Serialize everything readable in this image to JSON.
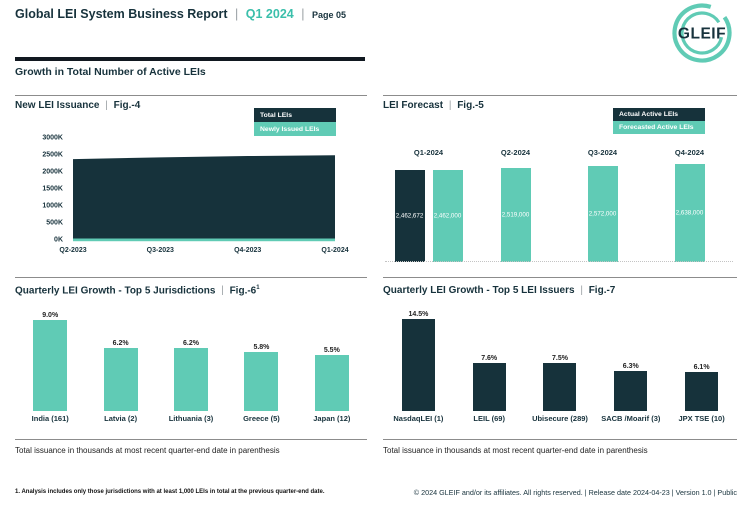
{
  "header": {
    "title": "Global LEI System Business Report",
    "period": "Q1 2024",
    "page": "Page 05"
  },
  "pipe": "|",
  "logo": {
    "text": "GLEIF"
  },
  "section_heading": "Growth in Total Number of Active LEIs",
  "colors": {
    "dark": "#16323B",
    "teal": "#60CBB5",
    "accent_teal_text": "#3BBFAB",
    "text_dark": "#17323C",
    "rule_gray": "#8C8C8C",
    "dotted_gray": "#C4C4C4"
  },
  "panels": {
    "fig4": {
      "title": "New LEI Issuance",
      "fig": "Fig.-4",
      "legend": [
        "Total LEIs",
        "Newly Issued LEIs"
      ]
    },
    "fig5": {
      "title": "LEI Forecast",
      "fig": "Fig.-5",
      "legend": [
        "Actual Active LEIs",
        "Forecasted Active LEIs"
      ]
    },
    "fig6": {
      "title": "Quarterly LEI Growth - Top 5 Jurisdictions",
      "fig": "Fig.-6",
      "sup": "1",
      "note": "Total issuance in thousands at most recent quarter-end date in parenthesis"
    },
    "fig7": {
      "title": "Quarterly LEI Growth - Top 5 LEI Issuers",
      "fig": "Fig.-7",
      "note": "Total issuance in thousands at most recent quarter-end date in parenthesis"
    }
  },
  "chart_data": [
    {
      "id": "fig4",
      "type": "area",
      "title": "New LEI Issuance | Fig.-4",
      "x": [
        "Q2-2023",
        "Q3-2023",
        "Q4-2023",
        "Q1-2024"
      ],
      "series": [
        {
          "name": "Total LEIs",
          "color_key": "dark",
          "values": [
            2350000,
            2400000,
            2440000,
            2462672
          ]
        },
        {
          "name": "Newly Issued LEIs",
          "color_key": "teal",
          "values": [
            80000,
            80000,
            80000,
            80000
          ]
        }
      ],
      "ylim": [
        0,
        3000000
      ],
      "yticks": [
        "0K",
        "500K",
        "1000K",
        "1500K",
        "2000K",
        "2500K",
        "3000K"
      ],
      "legend_position": "top-right",
      "grid": false
    },
    {
      "id": "fig5",
      "type": "bar",
      "title": "LEI Forecast | Fig.-5",
      "categories": [
        "Q1-2024",
        "Q2-2024",
        "Q3-2024",
        "Q4-2024"
      ],
      "series": [
        {
          "name": "Actual Active LEIs",
          "color_key": "dark",
          "values": [
            2462672,
            null,
            null,
            null
          ],
          "labels": [
            "2,462,672",
            "",
            "",
            ""
          ]
        },
        {
          "name": "Forecasted Active LEIs",
          "color_key": "teal",
          "values": [
            2462000,
            2519000,
            2572000,
            2638000
          ],
          "labels": [
            "2,462,000",
            "2,519,000",
            "2,572,000",
            "2,638,000"
          ]
        }
      ],
      "legend_position": "top-right",
      "grid": false
    },
    {
      "id": "fig6",
      "type": "bar",
      "title": "Quarterly LEI Growth - Top 5 Jurisdictions | Fig.-6",
      "categories": [
        "India (161)",
        "Latvia (2)",
        "Lithuania (3)",
        "Greece (5)",
        "Japan (12)"
      ],
      "values": [
        9.0,
        6.2,
        6.2,
        5.8,
        5.5
      ],
      "labels": [
        "9.0%",
        "6.2%",
        "6.2%",
        "5.8%",
        "5.5%"
      ],
      "color_key": "teal",
      "grid": false
    },
    {
      "id": "fig7",
      "type": "bar",
      "title": "Quarterly LEI Growth - Top 5 LEI Issuers | Fig.-7",
      "categories": [
        "NasdaqLEI (1)",
        "LEIL (69)",
        "Ubisecure (289)",
        "SACB /Moarif (3)",
        "JPX TSE (10)"
      ],
      "values": [
        14.5,
        7.6,
        7.5,
        6.3,
        6.1
      ],
      "labels": [
        "14.5%",
        "7.6%",
        "7.5%",
        "6.3%",
        "6.1%"
      ],
      "color_key": "dark",
      "grid": false
    }
  ],
  "footer": {
    "footnote": "1. Analysis includes only those jurisdictions with at least 1,000 LEIs in total at the previous quarter-end date.",
    "copyright": "© 2024 GLEIF and/or its affiliates. All rights reserved. | Release date 2024-04-23 | Version 1.0 | Public"
  }
}
